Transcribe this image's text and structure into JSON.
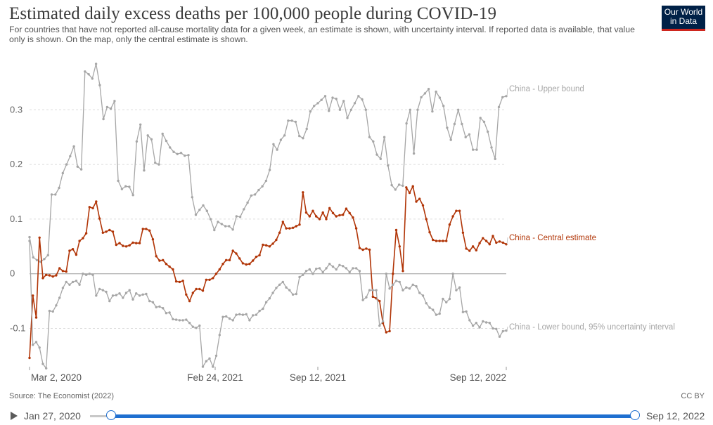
{
  "title": "Estimated daily excess deaths per 100,000 people during COVID-19",
  "subtitle": "For countries that have not reported all-cause mortality data for a given week, an estimate is shown, with uncertainty interval. If reported data is available, that value only is shown. On the map, only the central estimate is shown.",
  "logo": {
    "line1": "Our World",
    "line2": "in Data",
    "bg_color": "#002147",
    "accent_color": "#ce261e"
  },
  "source": "Source: The Economist (2022)",
  "license": "CC BY",
  "timeline": {
    "start_label": "Jan 27, 2020",
    "end_label": "Sep 12, 2022",
    "play_icon": "play-icon",
    "accent_color": "#1f6fd0"
  },
  "chart_data": {
    "type": "line",
    "x_ticks": [
      "Mar 2, 2020",
      "Feb 24, 2021",
      "Sep 12, 2021",
      "Sep 12, 2022"
    ],
    "y_ticks": [
      "-0.1",
      "0",
      "0.1",
      "0.2",
      "0.3"
    ],
    "ylim": [
      -0.17,
      0.38
    ],
    "grid": "horizontal dashed",
    "series": [
      {
        "name": "China - Upper bound",
        "color": "#a6a6a6",
        "values": [
          0.067,
          0.03,
          0.025,
          0.022,
          0.027,
          0.034,
          0.145,
          0.145,
          0.157,
          0.184,
          0.2,
          0.215,
          0.233,
          0.196,
          0.191,
          0.37,
          0.365,
          0.357,
          0.384,
          0.345,
          0.283,
          0.305,
          0.302,
          0.316,
          0.17,
          0.155,
          0.16,
          0.159,
          0.144,
          0.242,
          0.273,
          0.189,
          0.253,
          0.246,
          0.203,
          0.2,
          0.256,
          0.243,
          0.231,
          0.223,
          0.219,
          0.221,
          0.216,
          0.217,
          0.14,
          0.108,
          0.117,
          0.125,
          0.115,
          0.1,
          0.08,
          0.095,
          0.091,
          0.087,
          0.087,
          0.081,
          0.105,
          0.104,
          0.118,
          0.13,
          0.143,
          0.145,
          0.153,
          0.16,
          0.17,
          0.19,
          0.237,
          0.227,
          0.245,
          0.253,
          0.28,
          0.28,
          0.278,
          0.252,
          0.248,
          0.265,
          0.297,
          0.307,
          0.312,
          0.318,
          0.325,
          0.298,
          0.322,
          0.32,
          0.3,
          0.316,
          0.285,
          0.3,
          0.312,
          0.325,
          0.319,
          0.3,
          0.25,
          0.242,
          0.218,
          0.21,
          0.25,
          0.198,
          0.162,
          0.154,
          0.163,
          0.161,
          0.275,
          0.3,
          0.22,
          0.3,
          0.323,
          0.33,
          0.338,
          0.297,
          0.333,
          0.322,
          0.307,
          0.267,
          0.245,
          0.274,
          0.3,
          0.274,
          0.25,
          0.255,
          0.227,
          0.227,
          0.285,
          0.278,
          0.26,
          0.231,
          0.21,
          0.305,
          0.323,
          0.325
        ],
        "end_label": "China - Upper bound"
      },
      {
        "name": "China - Central estimate",
        "color": "#b13507",
        "values": [
          -0.154,
          -0.04,
          -0.08,
          0.066,
          -0.008,
          -0.002,
          -0.003,
          -0.005,
          -0.003,
          0.01,
          0.005,
          0.004,
          0.042,
          0.045,
          0.035,
          0.06,
          0.065,
          0.074,
          0.122,
          0.12,
          0.132,
          0.101,
          0.075,
          0.077,
          0.08,
          0.077,
          0.053,
          0.056,
          0.051,
          0.05,
          0.052,
          0.057,
          0.056,
          0.056,
          0.082,
          0.082,
          0.079,
          0.063,
          0.032,
          0.024,
          0.025,
          0.018,
          0.013,
          0.008,
          -0.014,
          -0.015,
          -0.013,
          -0.038,
          -0.05,
          -0.035,
          -0.028,
          -0.028,
          -0.031,
          -0.011,
          -0.011,
          -0.008,
          0.0,
          0.008,
          0.018,
          0.025,
          0.025,
          0.042,
          0.037,
          0.028,
          0.019,
          0.017,
          0.018,
          0.024,
          0.031,
          0.034,
          0.053,
          0.052,
          0.05,
          0.055,
          0.062,
          0.075,
          0.095,
          0.083,
          0.083,
          0.084,
          0.087,
          0.09,
          0.149,
          0.112,
          0.105,
          0.115,
          0.105,
          0.1,
          0.112,
          0.1,
          0.12,
          0.111,
          0.105,
          0.107,
          0.108,
          0.119,
          0.111,
          0.103,
          0.083,
          0.047,
          0.044,
          0.046,
          0.044,
          -0.042,
          -0.045,
          -0.05,
          -0.09,
          -0.107,
          -0.105,
          0.0,
          0.08,
          0.05,
          0.005,
          0.158,
          0.148,
          0.16,
          0.132,
          0.137,
          0.125,
          0.1,
          0.076,
          0.062,
          0.06,
          0.06,
          0.06,
          0.06,
          0.09,
          0.105,
          0.115,
          0.115,
          0.075,
          0.046,
          0.042,
          0.05,
          0.043,
          0.056,
          0.065,
          0.06,
          0.054,
          0.069,
          0.057,
          0.059,
          0.057,
          0.054
        ],
        "end_label": "China - Central estimate"
      },
      {
        "name": "China - Lower bound, 95% uncertainty interval",
        "color": "#a6a6a6",
        "values": [
          0.06,
          -0.13,
          -0.125,
          -0.135,
          -0.165,
          -0.173,
          -0.068,
          -0.069,
          -0.058,
          -0.044,
          -0.026,
          -0.015,
          -0.02,
          -0.015,
          -0.013,
          -0.02,
          0.0,
          -0.002,
          0.0,
          -0.002,
          -0.04,
          -0.028,
          -0.03,
          -0.033,
          -0.05,
          -0.04,
          -0.039,
          -0.036,
          -0.044,
          -0.035,
          -0.03,
          -0.047,
          -0.036,
          -0.04,
          -0.038,
          -0.037,
          -0.05,
          -0.052,
          -0.061,
          -0.06,
          -0.063,
          -0.072,
          -0.071,
          -0.083,
          -0.084,
          -0.085,
          -0.085,
          -0.084,
          -0.09,
          -0.097,
          -0.099,
          -0.095,
          -0.17,
          -0.16,
          -0.155,
          -0.17,
          -0.15,
          -0.112,
          -0.079,
          -0.078,
          -0.082,
          -0.085,
          -0.075,
          -0.074,
          -0.075,
          -0.074,
          -0.085,
          -0.076,
          -0.075,
          -0.068,
          -0.064,
          -0.052,
          -0.045,
          -0.035,
          -0.026,
          -0.02,
          -0.015,
          -0.025,
          -0.03,
          -0.038,
          -0.037,
          -0.006,
          -0.002,
          0.005,
          0.008,
          0.0,
          0.009,
          0.01,
          0.003,
          0.01,
          0.018,
          0.013,
          0.008,
          0.016,
          0.014,
          0.01,
          0.003,
          0.01,
          0.01,
          0.005,
          -0.048,
          -0.043,
          -0.03,
          -0.03,
          -0.03,
          -0.095,
          -0.087,
          0.0,
          -0.027,
          -0.02,
          -0.013,
          -0.015,
          -0.03,
          -0.025,
          -0.027,
          -0.02,
          -0.023,
          -0.035,
          -0.04,
          -0.054,
          -0.062,
          -0.066,
          -0.075,
          -0.073,
          -0.046,
          -0.052,
          -0.046,
          0.0,
          -0.03,
          -0.025,
          -0.07,
          -0.069,
          -0.085,
          -0.095,
          -0.09,
          -0.098,
          -0.087,
          -0.089,
          -0.09,
          -0.1,
          -0.101,
          -0.115,
          -0.105,
          -0.104
        ],
        "end_label": "China - Lower bound, 95% uncertainty interval"
      }
    ]
  }
}
